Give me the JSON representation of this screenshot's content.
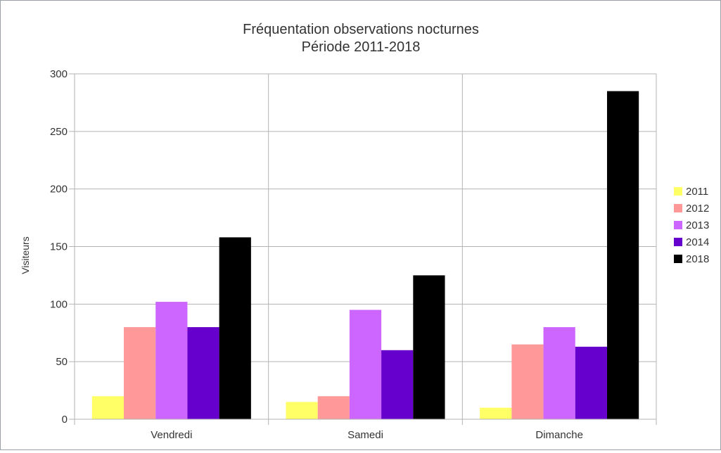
{
  "chart_data": {
    "type": "bar",
    "title": "Fréquentation observations nocturnes",
    "subtitle": "Période 2011-2018",
    "xlabel": "",
    "ylabel": "Visiteurs",
    "ylim": [
      0,
      300
    ],
    "yticks": [
      0,
      50,
      100,
      150,
      200,
      250,
      300
    ],
    "grid": true,
    "legend_position": "right",
    "categories": [
      "Vendredi",
      "Samedi",
      "Dimanche"
    ],
    "series": [
      {
        "name": "2011",
        "color": "#ffff66",
        "values": [
          20,
          15,
          10
        ]
      },
      {
        "name": "2012",
        "color": "#ff9999",
        "values": [
          80,
          20,
          65
        ]
      },
      {
        "name": "2013",
        "color": "#cc66ff",
        "values": [
          102,
          95,
          80
        ]
      },
      {
        "name": "2014",
        "color": "#6600cc",
        "values": [
          80,
          60,
          63
        ]
      },
      {
        "name": "2018",
        "color": "#000000",
        "values": [
          158,
          125,
          285
        ]
      }
    ]
  }
}
